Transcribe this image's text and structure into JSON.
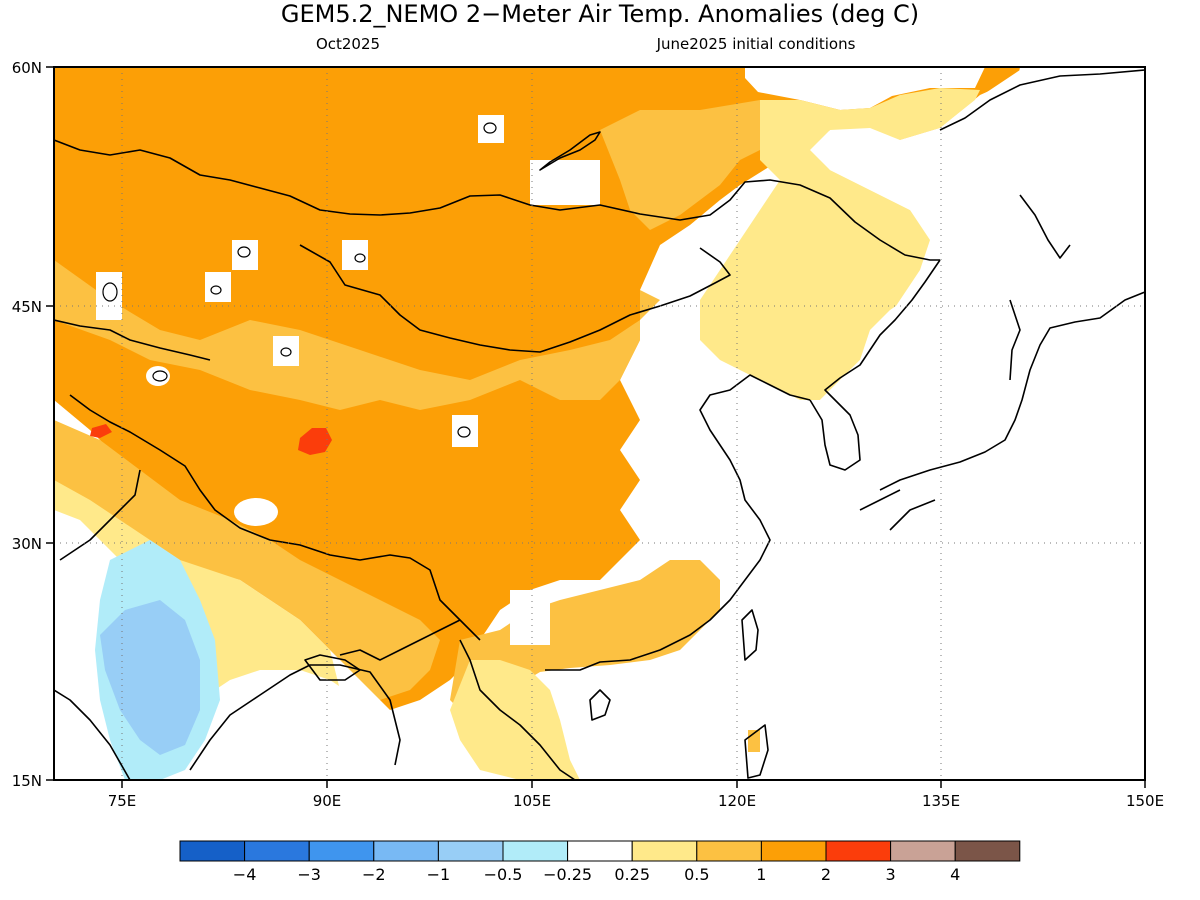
{
  "title": "GEM5.2_NEMO 2−Meter Air Temp. Anomalies (deg C)",
  "subtitle_left": "Oct2025",
  "subtitle_right": "June2025 initial conditions",
  "y_labels": [
    "60N",
    "45N",
    "30N",
    "15N"
  ],
  "x_labels": [
    "75E",
    "90E",
    "105E",
    "120E",
    "135E",
    "150E"
  ],
  "colorbar": {
    "colors": [
      "#1560c8",
      "#2a78de",
      "#3f95ee",
      "#78b9f4",
      "#98cef6",
      "#b1ecf9",
      "#ffffff",
      "#ffe98a",
      "#fcc142",
      "#fc9f06",
      "#fb3d0b",
      "#c9a296",
      "#7b5548"
    ],
    "tick_labels": [
      "−4",
      "−3",
      "−2",
      "−1",
      "−0.5",
      "−0.25",
      "0.25",
      "0.5",
      "1",
      "2",
      "3",
      "4"
    ]
  }
}
